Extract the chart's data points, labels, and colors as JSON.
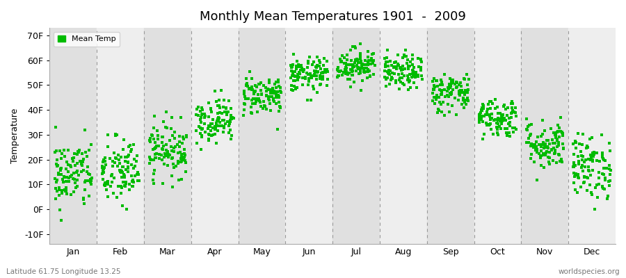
{
  "title": "Monthly Mean Temperatures 1901  -  2009",
  "ylabel": "Temperature",
  "xlabel_months": [
    "Jan",
    "Feb",
    "Mar",
    "Apr",
    "May",
    "Jun",
    "Jul",
    "Aug",
    "Sep",
    "Oct",
    "Nov",
    "Dec"
  ],
  "yticks": [
    -10,
    0,
    10,
    20,
    30,
    40,
    50,
    60,
    70
  ],
  "ytick_labels": [
    "-10F",
    "0F",
    "10F",
    "20F",
    "30F",
    "40F",
    "50F",
    "60F",
    "70F"
  ],
  "ylim": [
    -14,
    73
  ],
  "marker_color": "#00BB00",
  "marker_size": 6,
  "legend_label": "Mean Temp",
  "subtitle_left": "Latitude 61.75 Longitude 13.25",
  "subtitle_right": "worldspecies.org",
  "background_color": "#ffffff",
  "band_colors": [
    "#e0e0e0",
    "#eeeeee"
  ],
  "monthly_mean_F": [
    14.0,
    15.0,
    24.0,
    36.0,
    46.0,
    54.0,
    58.0,
    55.0,
    47.0,
    37.0,
    26.0,
    17.0
  ],
  "monthly_std_F": [
    7.0,
    7.0,
    5.5,
    4.5,
    4.0,
    3.5,
    3.5,
    3.5,
    4.0,
    4.0,
    5.0,
    6.5
  ],
  "n_years": 109,
  "dpi": 100,
  "figsize": [
    9.0,
    4.0
  ]
}
